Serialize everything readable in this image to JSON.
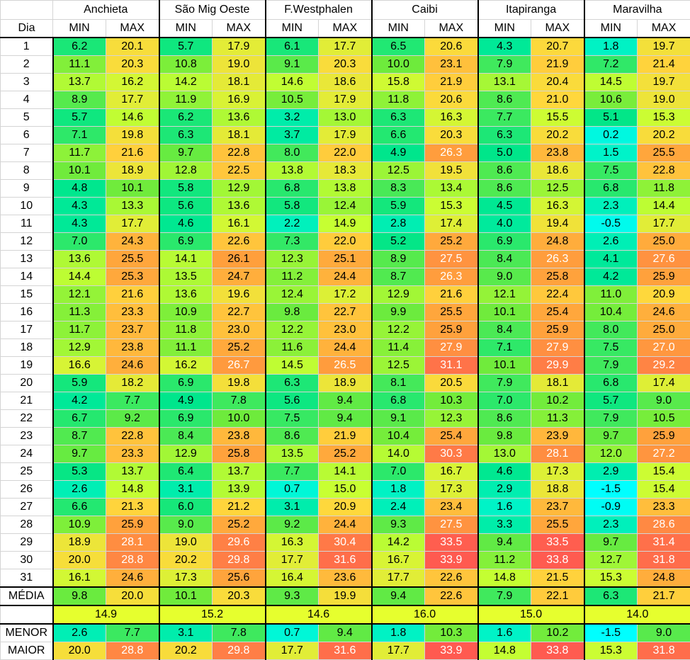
{
  "header": {
    "day_label": "Dia",
    "min_label": "MIN",
    "max_label": "MAX",
    "cities": [
      "Anchieta",
      "São Mig Oeste",
      "F.Westphalen",
      "Caibi",
      "Itapiranga",
      "Maravilha"
    ]
  },
  "rows": [
    {
      "day": "1",
      "v": [
        "6.2",
        "20.1",
        "5.7",
        "17.9",
        "6.1",
        "17.7",
        "6.5",
        "20.6",
        "4.3",
        "20.7",
        "1.8",
        "19.7"
      ]
    },
    {
      "day": "2",
      "v": [
        "11.1",
        "20.3",
        "10.8",
        "19.0",
        "9.1",
        "20.3",
        "10.0",
        "23.1",
        "7.9",
        "21.9",
        "7.2",
        "21.4"
      ]
    },
    {
      "day": "3",
      "v": [
        "13.7",
        "16.2",
        "14.2",
        "18.1",
        "14.6",
        "18.6",
        "15.8",
        "21.9",
        "13.1",
        "20.4",
        "14.5",
        "19.7"
      ]
    },
    {
      "day": "4",
      "v": [
        "8.9",
        "17.7",
        "11.9",
        "16.9",
        "10.5",
        "17.9",
        "11.8",
        "20.6",
        "8.6",
        "21.0",
        "10.6",
        "19.0"
      ]
    },
    {
      "day": "5",
      "v": [
        "5.7",
        "14.6",
        "6.2",
        "13.6",
        "3.2",
        "13.0",
        "6.3",
        "16.3",
        "7.7",
        "15.5",
        "5.1",
        "15.3"
      ]
    },
    {
      "day": "6",
      "v": [
        "7.1",
        "19.8",
        "6.3",
        "18.1",
        "3.7",
        "17.9",
        "6.6",
        "20.3",
        "6.3",
        "20.2",
        "0.2",
        "20.2"
      ]
    },
    {
      "day": "7",
      "v": [
        "11.7",
        "21.6",
        "9.7",
        "22.8",
        "8.0",
        "22.0",
        "4.9",
        "26.3",
        "5.0",
        "23.8",
        "1.5",
        "25.5"
      ]
    },
    {
      "day": "8",
      "v": [
        "10.1",
        "18.9",
        "12.8",
        "22.5",
        "13.8",
        "18.3",
        "12.5",
        "19.5",
        "8.6",
        "18.6",
        "7.5",
        "22.8"
      ]
    },
    {
      "day": "9",
      "v": [
        "4.8",
        "10.1",
        "5.8",
        "12.9",
        "6.8",
        "13.8",
        "8.3",
        "13.4",
        "8.6",
        "12.5",
        "6.8",
        "11.8"
      ]
    },
    {
      "day": "10",
      "v": [
        "4.3",
        "13.3",
        "5.6",
        "13.6",
        "5.8",
        "12.4",
        "5.9",
        "15.3",
        "4.5",
        "16.3",
        "2.3",
        "14.4"
      ]
    },
    {
      "day": "11",
      "v": [
        "4.3",
        "17.7",
        "4.6",
        "16.1",
        "2.2",
        "14.9",
        "2.8",
        "17.4",
        "4.0",
        "19.4",
        "-0.5",
        "17.7"
      ]
    },
    {
      "day": "12",
      "v": [
        "7.0",
        "24.3",
        "6.9",
        "22.6",
        "7.3",
        "22.0",
        "5.2",
        "25.2",
        "6.9",
        "24.8",
        "2.6",
        "25.0"
      ]
    },
    {
      "day": "13",
      "v": [
        "13.6",
        "25.5",
        "14.1",
        "26.1",
        "12.3",
        "25.1",
        "8.9",
        "27.5",
        "8.4",
        "26.3",
        "4.1",
        "27.6"
      ]
    },
    {
      "day": "14",
      "v": [
        "14.4",
        "25.3",
        "13.5",
        "24.7",
        "11.2",
        "24.4",
        "8.7",
        "26.3",
        "9.0",
        "25.8",
        "4.2",
        "25.9"
      ]
    },
    {
      "day": "15",
      "v": [
        "12.1",
        "21.6",
        "13.6",
        "19.6",
        "12.4",
        "17.2",
        "12.9",
        "21.6",
        "12.1",
        "22.4",
        "11.0",
        "20.9"
      ]
    },
    {
      "day": "16",
      "v": [
        "11.3",
        "23.3",
        "10.9",
        "22.7",
        "9.8",
        "22.7",
        "9.9",
        "25.5",
        "10.1",
        "25.4",
        "10.4",
        "24.6"
      ]
    },
    {
      "day": "17",
      "v": [
        "11.7",
        "23.7",
        "11.8",
        "23.0",
        "12.2",
        "23.0",
        "12.2",
        "25.9",
        "8.4",
        "25.9",
        "8.0",
        "25.0"
      ]
    },
    {
      "day": "18",
      "v": [
        "12.9",
        "23.8",
        "11.1",
        "25.2",
        "11.6",
        "24.4",
        "11.4",
        "27.9",
        "7.1",
        "27.9",
        "7.5",
        "27.0"
      ]
    },
    {
      "day": "19",
      "v": [
        "16.6",
        "24.6",
        "16.2",
        "26.7",
        "14.5",
        "26.5",
        "12.5",
        "31.1",
        "10.1",
        "29.9",
        "7.9",
        "29.2"
      ]
    },
    {
      "day": "20",
      "v": [
        "5.9",
        "18.2",
        "6.9",
        "19.8",
        "6.3",
        "18.9",
        "8.1",
        "20.5",
        "7.9",
        "18.1",
        "6.8",
        "17.4"
      ]
    },
    {
      "day": "21",
      "v": [
        "4.2",
        "7.7",
        "4.9",
        "7.8",
        "5.6",
        "9.4",
        "6.8",
        "10.3",
        "7.0",
        "10.2",
        "5.7",
        "9.0"
      ]
    },
    {
      "day": "22",
      "v": [
        "6.7",
        "9.2",
        "6.9",
        "10.0",
        "7.5",
        "9.4",
        "9.1",
        "12.3",
        "8.6",
        "11.3",
        "7.9",
        "10.5"
      ]
    },
    {
      "day": "23",
      "v": [
        "8.7",
        "22.8",
        "8.4",
        "23.8",
        "8.6",
        "21.9",
        "10.4",
        "25.4",
        "9.8",
        "23.9",
        "9.7",
        "25.9"
      ]
    },
    {
      "day": "24",
      "v": [
        "9.7",
        "23.3",
        "12.9",
        "25.8",
        "13.5",
        "25.2",
        "14.0",
        "30.3",
        "13.0",
        "28.1",
        "12.0",
        "27.2"
      ]
    },
    {
      "day": "25",
      "v": [
        "5.3",
        "13.7",
        "6.4",
        "13.7",
        "7.7",
        "14.1",
        "7.0",
        "16.7",
        "4.6",
        "17.3",
        "2.9",
        "15.4"
      ]
    },
    {
      "day": "26",
      "v": [
        "2.6",
        "14.8",
        "3.1",
        "13.9",
        "0.7",
        "15.0",
        "1.8",
        "17.3",
        "2.9",
        "18.8",
        "-1.5",
        "15.4"
      ]
    },
    {
      "day": "27",
      "v": [
        "6.6",
        "21.3",
        "6.0",
        "21.2",
        "3.1",
        "20.9",
        "2.4",
        "23.4",
        "1.6",
        "23.7",
        "-0.9",
        "23.3"
      ]
    },
    {
      "day": "28",
      "v": [
        "10.9",
        "25.9",
        "9.0",
        "25.2",
        "9.2",
        "24.4",
        "9.3",
        "27.5",
        "3.3",
        "25.5",
        "2.3",
        "28.6"
      ]
    },
    {
      "day": "29",
      "v": [
        "18.9",
        "28.1",
        "19.0",
        "29.6",
        "16.3",
        "30.4",
        "14.2",
        "33.5",
        "9.4",
        "33.5",
        "9.7",
        "31.4"
      ]
    },
    {
      "day": "30",
      "v": [
        "20.0",
        "28.8",
        "20.2",
        "29.8",
        "17.7",
        "31.6",
        "16.7",
        "33.9",
        "11.2",
        "33.8",
        "12.7",
        "31.8"
      ]
    },
    {
      "day": "31",
      "v": [
        "16.1",
        "24.6",
        "17.3",
        "25.6",
        "16.4",
        "23.6",
        "17.7",
        "22.6",
        "14.8",
        "21.5",
        "15.3",
        "24.8"
      ]
    }
  ],
  "media": {
    "label": "MÉDIA",
    "v": [
      "9.8",
      "20.0",
      "10.1",
      "20.3",
      "9.3",
      "19.9",
      "9.4",
      "22.6",
      "7.9",
      "22.1",
      "6.3",
      "21.7"
    ]
  },
  "overall": [
    "14.9",
    "15.2",
    "14.6",
    "16.0",
    "15.0",
    "14.0"
  ],
  "menor": {
    "label": "MENOR",
    "v": [
      "2.6",
      "7.7",
      "3.1",
      "7.8",
      "0.7",
      "9.4",
      "1.8",
      "10.3",
      "1.6",
      "10.2",
      "-1.5",
      "9.0"
    ]
  },
  "maior": {
    "label": "MAIOR",
    "v": [
      "20.0",
      "28.8",
      "20.2",
      "29.8",
      "17.7",
      "31.6",
      "17.7",
      "33.9",
      "14.8",
      "33.8",
      "15.3",
      "31.8"
    ]
  },
  "color_scale": {
    "cold": "#00ffff",
    "cool": "#00e68a",
    "mild": "#c8ff32",
    "warm": "#ffc832",
    "hot": "#ff5a50"
  }
}
